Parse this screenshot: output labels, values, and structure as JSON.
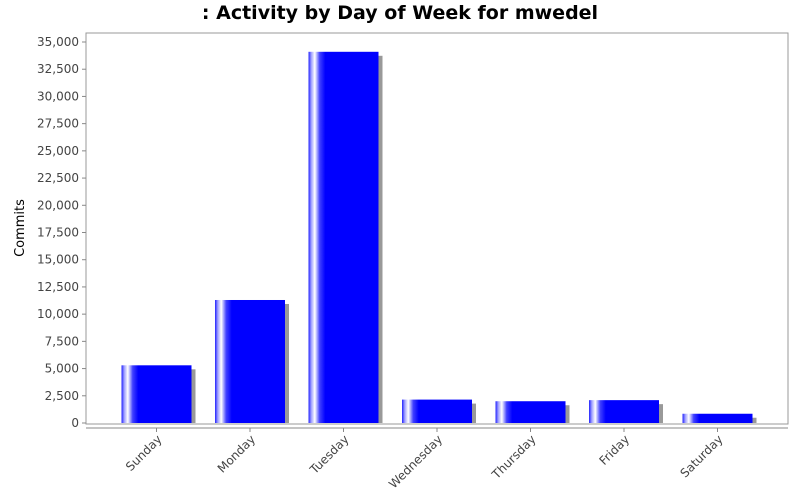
{
  "chart_data": {
    "type": "bar",
    "title": ": Activity by Day of Week for mwedel",
    "xlabel": "",
    "ylabel": "Commits",
    "categories": [
      "Sunday",
      "Monday",
      "Tuesday",
      "Wednesday",
      "Thursday",
      "Friday",
      "Saturday"
    ],
    "values": [
      5300,
      11300,
      34100,
      2150,
      2000,
      2100,
      850
    ],
    "ylim": [
      0,
      35000
    ],
    "yticks": [
      0,
      2500,
      5000,
      7500,
      10000,
      12500,
      15000,
      17500,
      20000,
      22500,
      25000,
      27500,
      30000,
      32500,
      35000
    ],
    "ytick_labels": [
      "0",
      "2,500",
      "5,000",
      "7,500",
      "10,000",
      "12,500",
      "15,000",
      "17,500",
      "20,000",
      "22,500",
      "25,000",
      "27,500",
      "30,000",
      "32,500",
      "35,000"
    ],
    "grid": false,
    "bar_color": "#0000ff",
    "bar_highlight_color": "#ffffff",
    "shadow_color": "#999999"
  }
}
